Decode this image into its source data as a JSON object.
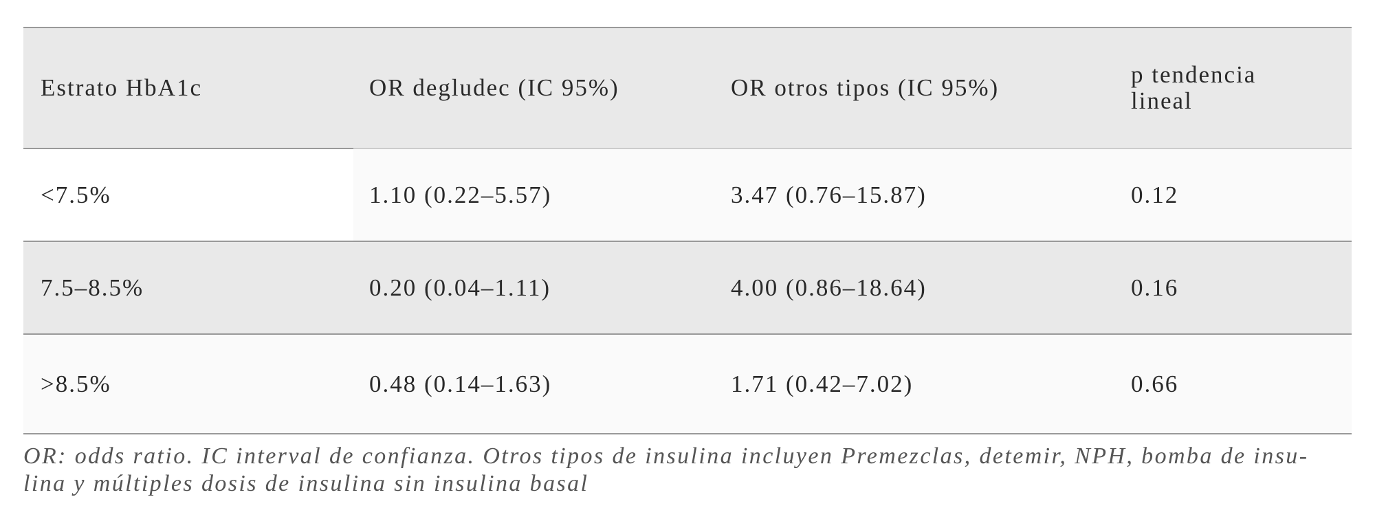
{
  "table": {
    "header": [
      "Estrato HbA1c",
      "OR degludec (IC 95%)",
      "OR otros tipos (IC 95%)",
      "p tendencia lineal"
    ],
    "rows": [
      [
        "<7.5%",
        "1.10 (0.22–5.57)",
        "3.47 (0.76–15.87)",
        "0.12"
      ],
      [
        "7.5–8.5%",
        "0.20 (0.04–1.11)",
        "4.00 (0.86–18.64)",
        "0.16"
      ],
      [
        ">8.5%",
        "0.48 (0.14–1.63)",
        "1.71 (0.42–7.02)",
        "0.66"
      ]
    ]
  },
  "footnote": [
    "OR: odds ratio. IC interval de confianza. Otros tipos de insulina incluyen Premezclas, detemir, NPH, bomba de insu-",
    "lina y múltiples dosis de insulina sin insulina basal"
  ]
}
